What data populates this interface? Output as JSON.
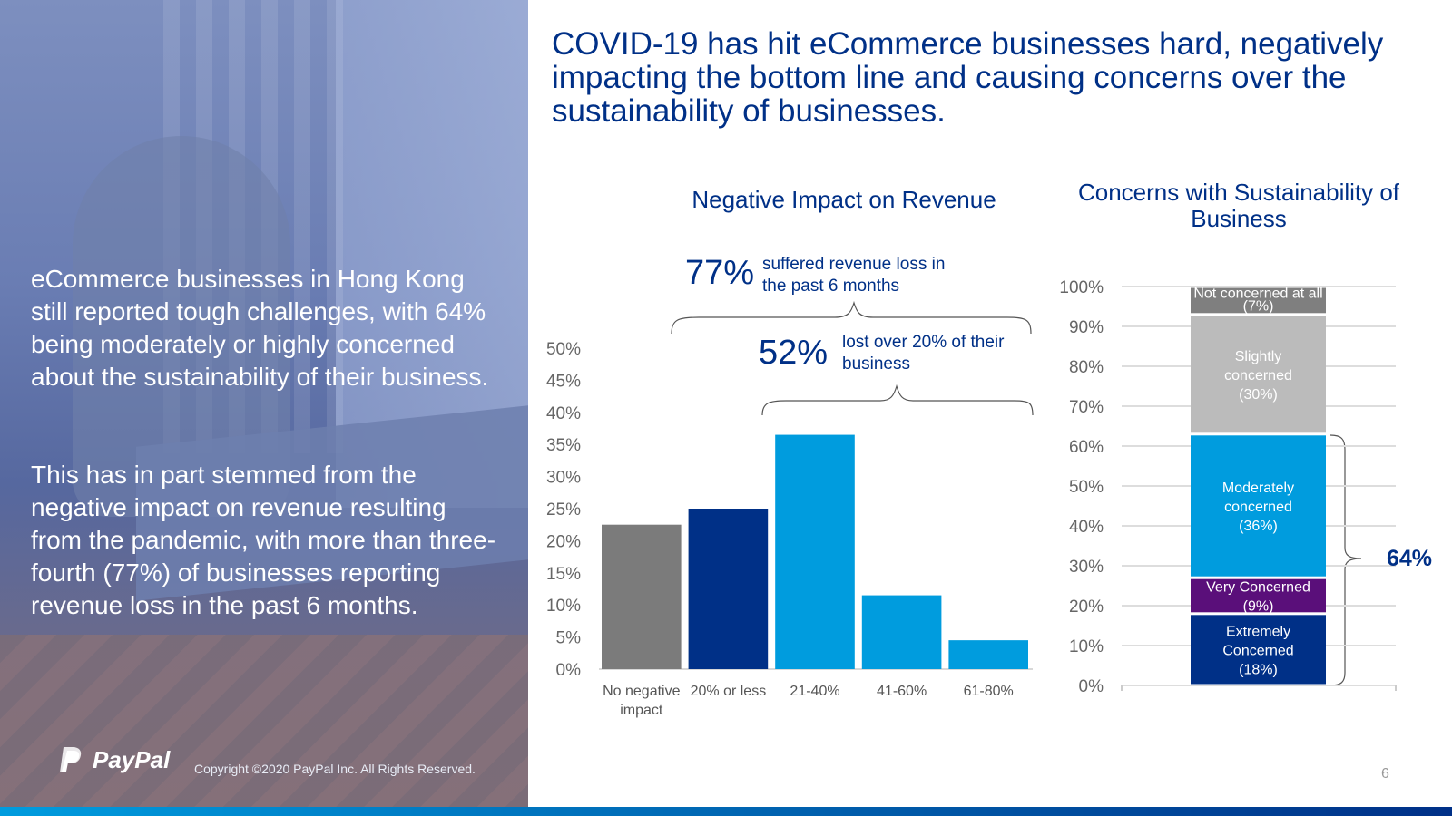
{
  "left_panel": {
    "paragraph1": "eCommerce businesses in Hong Kong still reported tough challenges, with 64% being moderately or highly concerned about the sustainability of their business.",
    "paragraph2": "This has in part stemmed from the negative impact on revenue resulting from the pandemic, with more than three-fourth (77%) of businesses reporting revenue loss in the past 6 months.",
    "logo_text": "PayPal",
    "copyright": "Copyright ©2020 PayPal Inc. All Rights Reserved."
  },
  "header": {
    "title": "COVID-19 has hit eCommerce businesses hard, negatively impacting the bottom line and causing concerns over the sustainability of businesses."
  },
  "callouts": {
    "pct_77": "77%",
    "text_77": "suffered revenue loss in the past 6 months",
    "pct_52": "52%",
    "text_52": "lost over 20% of their business"
  },
  "page_number": "6",
  "colors": {
    "navy": "#003087",
    "bright_blue": "#009cde",
    "gray": "#7b7b7b",
    "light_gray": "#bbbbbb",
    "dark_gray": "#7f7f7f",
    "purple": "#5a0f7a"
  },
  "chart_data": [
    {
      "type": "bar",
      "title": "Negative Impact on Revenue",
      "categories": [
        "No negative impact",
        "20% or less",
        "21-40%",
        "41-60%",
        "61-80%"
      ],
      "values": [
        22.5,
        25,
        36.5,
        11.5,
        4.5
      ],
      "bar_colors": [
        "#7b7b7b",
        "#003087",
        "#009cde",
        "#009cde",
        "#009cde"
      ],
      "ylim": [
        0,
        50
      ],
      "yticks": [
        "0%",
        "5%",
        "10%",
        "15%",
        "20%",
        "25%",
        "30%",
        "35%",
        "40%",
        "45%",
        "50%"
      ],
      "xlabel": "",
      "ylabel": ""
    },
    {
      "type": "stacked_bar",
      "title": "Concerns with Sustainability of Business",
      "segments": [
        {
          "label": "Extremely Concerned (18%)",
          "value": 18,
          "color": "#003087"
        },
        {
          "label": "Very Concerned (9%)",
          "value": 9,
          "color": "#5a0f7a"
        },
        {
          "label": "Moderately concerned (36%)",
          "value": 36,
          "color": "#009cde"
        },
        {
          "label": "Slightly concerned (30%)",
          "value": 30,
          "color": "#bbbbbb"
        },
        {
          "label": "Not concerned at all (7%)",
          "value": 7,
          "color": "#7f7f7f"
        }
      ],
      "ylim": [
        0,
        100
      ],
      "yticks": [
        "0%",
        "10%",
        "20%",
        "30%",
        "40%",
        "50%",
        "60%",
        "70%",
        "80%",
        "90%",
        "100%"
      ],
      "bracket_total": "64%"
    }
  ]
}
